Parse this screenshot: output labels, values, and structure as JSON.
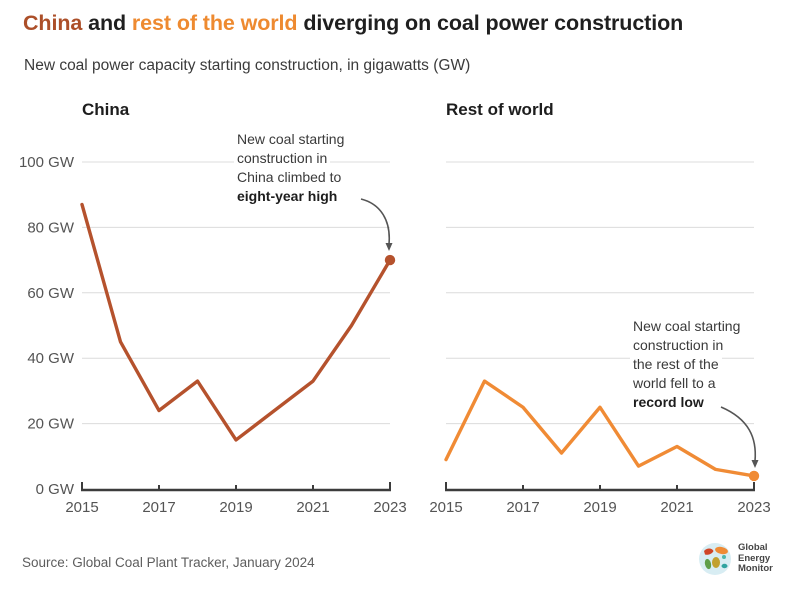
{
  "title": {
    "segments": [
      {
        "text": "China",
        "color": "#ac4f29"
      },
      {
        "text": " and ",
        "color": "#1f1f1f"
      },
      {
        "text": "rest of the world",
        "color": "#ee8a30"
      },
      {
        "text": " diverging on coal power construction",
        "color": "#1f1f1f"
      }
    ]
  },
  "subtitle": "New coal power capacity starting construction, in gigawatts (GW)",
  "source": "Source: Global Coal Plant Tracker, January 2024",
  "logo": {
    "lines": [
      "Global",
      "Energy",
      "Monitor"
    ]
  },
  "chart_data": [
    {
      "type": "line",
      "title": "China",
      "color": "#b5522d",
      "x": [
        2015,
        2016,
        2017,
        2018,
        2019,
        2020,
        2021,
        2022,
        2023
      ],
      "values": [
        87,
        45,
        24,
        33,
        15,
        24,
        33,
        50,
        70
      ],
      "unit": "GW",
      "ylim": [
        0,
        100
      ],
      "grid": true,
      "endpoint_dot": true,
      "yticks": [
        {
          "label": "100 GW",
          "value": 100
        },
        {
          "label": "80 GW",
          "value": 80
        },
        {
          "label": "60 GW",
          "value": 60
        },
        {
          "label": "40 GW",
          "value": 40
        },
        {
          "label": "20 GW",
          "value": 20
        },
        {
          "label": "0 GW",
          "value": 0
        }
      ],
      "xticks": [
        {
          "label": "2015",
          "value": 2015
        },
        {
          "label": "2017",
          "value": 2017
        },
        {
          "label": "2019",
          "value": 2019
        },
        {
          "label": "2021",
          "value": 2021
        },
        {
          "label": "2023",
          "value": 2023
        }
      ],
      "annotation": {
        "lines": [
          {
            "text": "New coal starting",
            "bold": false
          },
          {
            "text": "construction in",
            "bold": false
          },
          {
            "text": "China climbed to",
            "bold": false
          },
          {
            "text": "eight-year high",
            "bold": true
          }
        ]
      }
    },
    {
      "type": "line",
      "title": "Rest of world",
      "color": "#f08b35",
      "x": [
        2015,
        2016,
        2017,
        2018,
        2019,
        2020,
        2021,
        2022,
        2023
      ],
      "values": [
        9,
        33,
        25,
        11,
        25,
        7,
        13,
        6,
        4
      ],
      "unit": "GW",
      "ylim": [
        0,
        100
      ],
      "grid": true,
      "endpoint_dot": true,
      "gridline_values": [
        100,
        80,
        60,
        40,
        20
      ],
      "xticks": [
        {
          "label": "2015",
          "value": 2015
        },
        {
          "label": "2017",
          "value": 2017
        },
        {
          "label": "2019",
          "value": 2019
        },
        {
          "label": "2021",
          "value": 2021
        },
        {
          "label": "2023",
          "value": 2023
        }
      ],
      "annotation": {
        "lines": [
          {
            "text": "New coal starting",
            "bold": false
          },
          {
            "text": "construction in",
            "bold": false
          },
          {
            "text": "the rest of the",
            "bold": false
          },
          {
            "text": "world fell to a",
            "bold": false
          },
          {
            "text": "record low",
            "bold": true
          }
        ]
      }
    }
  ]
}
